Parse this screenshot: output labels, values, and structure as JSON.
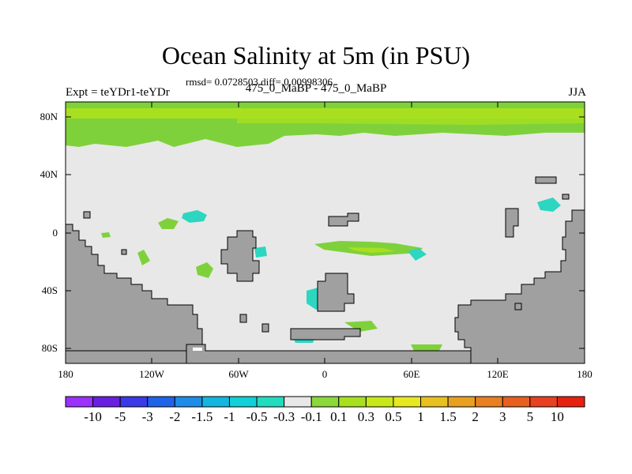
{
  "header": {
    "title": "Ocean Salinity at 5m (in PSU)",
    "stats": "rmsd= 0.0728503 diff= 0.00998306",
    "left_label": "Expt = teYDr1-teYDr",
    "center_label": "475_0_MaBP - 475_0_MaBP",
    "right_label": "JJA"
  },
  "map": {
    "y_ticks": [
      "80N",
      "40N",
      "0",
      "40S",
      "80S"
    ],
    "x_ticks": [
      "180",
      "120W",
      "60W",
      "0",
      "60E",
      "120E",
      "180"
    ],
    "colors": {
      "background": "#e8e8e8",
      "land": "#a0a0a0",
      "positive_small": "#7fd13b",
      "positive_medium": "#a8e020",
      "negative_small": "#2cd6c0"
    }
  },
  "colorbar": {
    "labels": [
      "-10",
      "-5",
      "-3",
      "-2",
      "-1.5",
      "-1",
      "-0.5",
      "-0.3",
      "-0.1",
      "0.1",
      "0.3",
      "0.5",
      "1",
      "1.5",
      "2",
      "3",
      "5",
      "10"
    ],
    "colors": [
      "#9b30ff",
      "#6a1fe0",
      "#3a3ae8",
      "#1e63e8",
      "#1c8ce8",
      "#12b6e0",
      "#10d0d8",
      "#22dcc0",
      "#e8e8e8",
      "#8ad83a",
      "#a8e020",
      "#c8e818",
      "#e8e820",
      "#e8c020",
      "#e8a020",
      "#e88020",
      "#e86020",
      "#e84020",
      "#e82010"
    ]
  }
}
